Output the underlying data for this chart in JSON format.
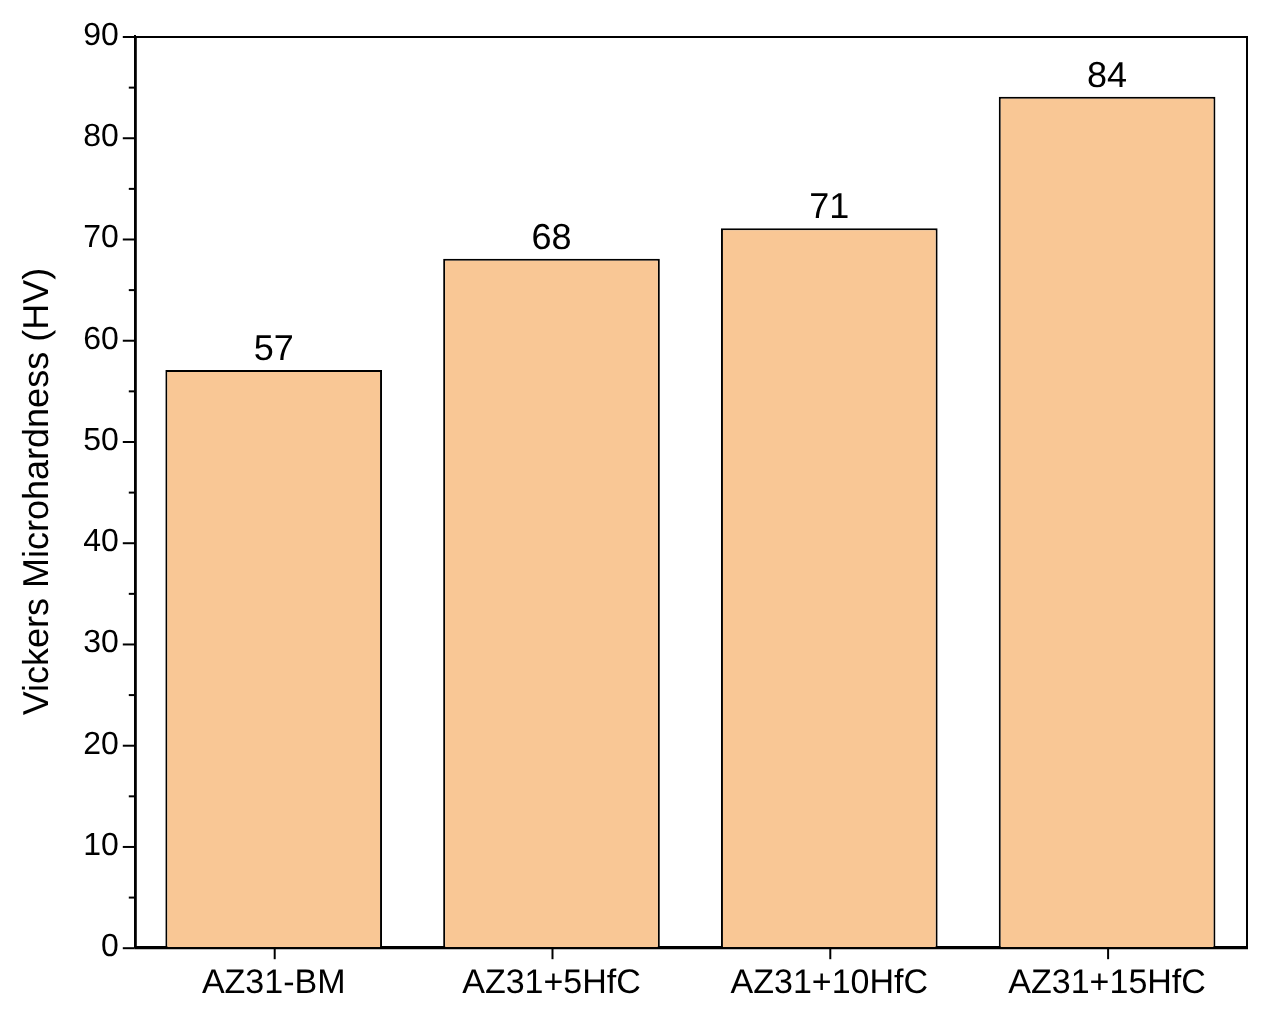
{
  "chart_data": {
    "type": "bar",
    "ylabel": "Vickers Microhardness (HV)",
    "categories": [
      "AZ31-BM",
      "AZ31+5HfC",
      "AZ31+10HfC",
      "AZ31+15HfC"
    ],
    "values": [
      57,
      68,
      71,
      84
    ],
    "color": "#f9c795",
    "ylim": [
      0,
      90
    ],
    "yticks": [
      0,
      {
        "value": 5,
        "label": null
      },
      10,
      {
        "value": 15,
        "label": null
      },
      20,
      {
        "value": 25,
        "label": null
      },
      30,
      {
        "value": 35,
        "label": null
      },
      40,
      {
        "value": 45,
        "label": null
      },
      50,
      {
        "value": 55,
        "label": null
      },
      60,
      {
        "value": 65,
        "label": null
      },
      70,
      {
        "value": 75,
        "label": null
      },
      80,
      {
        "value": 85,
        "label": null
      },
      90
    ],
    "data_labels": true,
    "grid": false,
    "legend": false
  }
}
